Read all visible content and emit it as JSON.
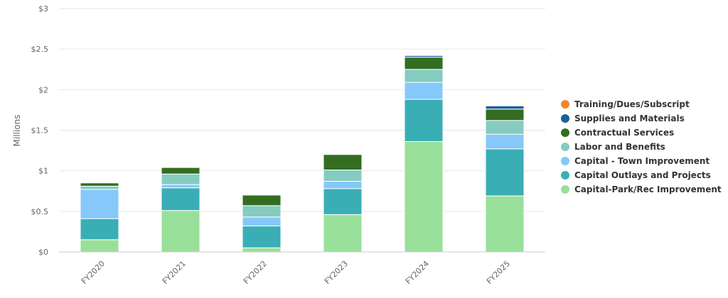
{
  "chart_data": {
    "type": "bar",
    "stacked": true,
    "ylabel": "Millions",
    "y_unit_prefix": "$",
    "ylim": [
      0,
      3
    ],
    "y_ticks": [
      0,
      0.5,
      1,
      1.5,
      2,
      2.5,
      3
    ],
    "y_tick_labels": [
      "$0",
      "$0.5",
      "$1",
      "$1.5",
      "$2",
      "$2.5",
      "$3"
    ],
    "categories": [
      "FY2020",
      "FY2021",
      "FY2022",
      "FY2023",
      "FY2024",
      "FY2025"
    ],
    "grid": true,
    "legend_position": "right",
    "series": [
      {
        "name": "Capital-Park/Rec Improvement",
        "color": "#98e09a",
        "values": [
          0.15,
          0.51,
          0.05,
          0.46,
          1.36,
          0.69
        ]
      },
      {
        "name": "Capital Outlays and Projects",
        "color": "#3aaeb5",
        "values": [
          0.26,
          0.28,
          0.27,
          0.32,
          0.52,
          0.58
        ]
      },
      {
        "name": "Capital - Town Improvement",
        "color": "#85c8f9",
        "values": [
          0.36,
          0.04,
          0.11,
          0.09,
          0.21,
          0.18
        ]
      },
      {
        "name": "Labor and Benefits",
        "color": "#85cbc0",
        "values": [
          0.04,
          0.13,
          0.14,
          0.14,
          0.16,
          0.17
        ]
      },
      {
        "name": "Contractual Services",
        "color": "#346d22",
        "values": [
          0.04,
          0.08,
          0.13,
          0.19,
          0.15,
          0.14
        ]
      },
      {
        "name": "Supplies and Materials",
        "color": "#1a6198",
        "values": [
          0,
          0,
          0,
          0,
          0.02,
          0.04
        ]
      },
      {
        "name": "Training/Dues/Subscript",
        "color": "#f0882a",
        "values": [
          0,
          0,
          0,
          0,
          0,
          0
        ]
      }
    ],
    "legend_order": [
      "Training/Dues/Subscript",
      "Supplies and Materials",
      "Contractual Services",
      "Labor and Benefits",
      "Capital - Town Improvement",
      "Capital Outlays and Projects",
      "Capital-Park/Rec Improvement"
    ]
  }
}
